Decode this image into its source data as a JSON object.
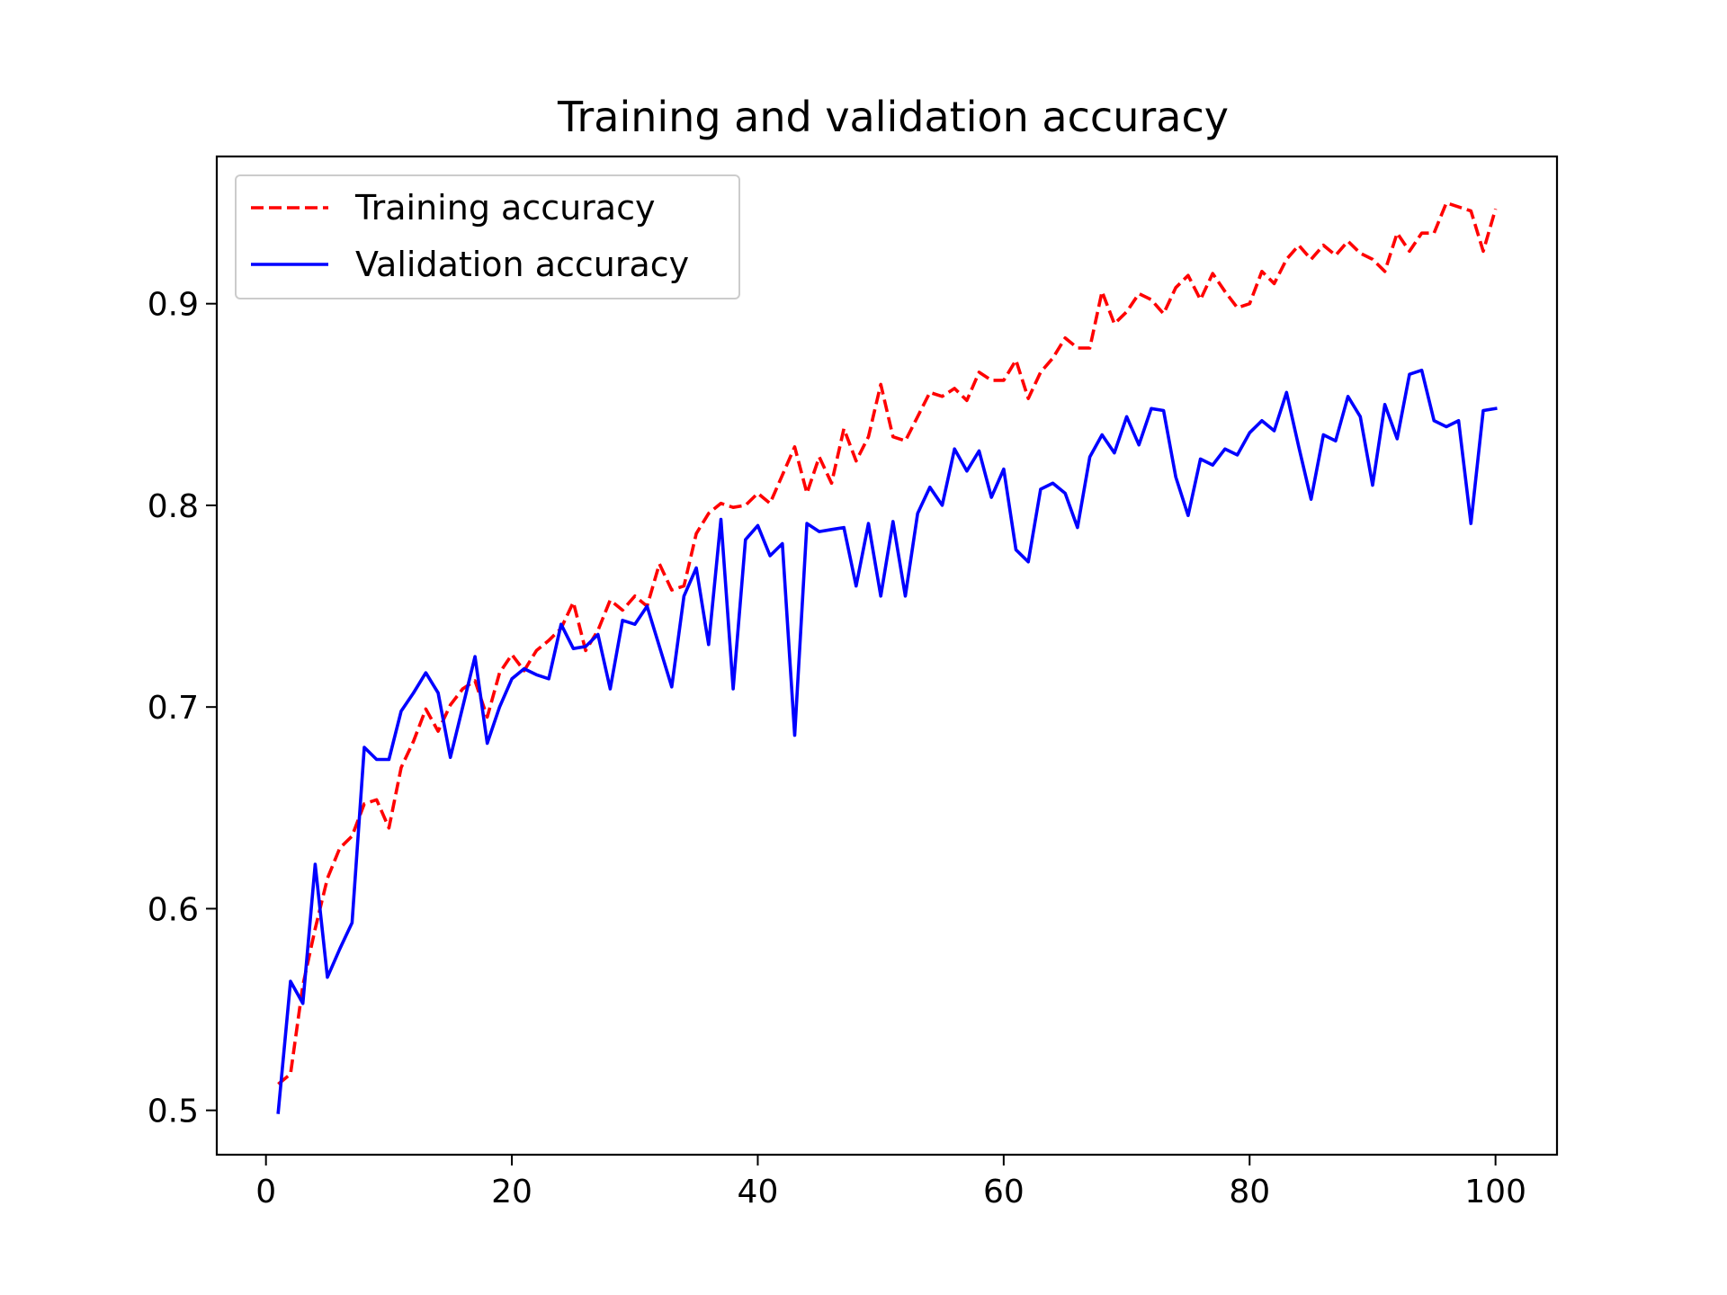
{
  "chart_data": {
    "type": "line",
    "title": "Training and validation accuracy",
    "xlabel": "",
    "ylabel": "",
    "xlim": [
      -4,
      105
    ],
    "ylim": [
      0.478,
      0.973
    ],
    "x_ticks": [
      0,
      20,
      40,
      60,
      80,
      100
    ],
    "x_tick_labels": [
      "0",
      "20",
      "40",
      "60",
      "80",
      "100"
    ],
    "y_ticks": [
      0.5,
      0.6,
      0.7,
      0.8,
      0.9
    ],
    "y_tick_labels": [
      "0.5",
      "0.6",
      "0.7",
      "0.8",
      "0.9"
    ],
    "legend": {
      "position": "top-left"
    },
    "grid": false,
    "series": [
      {
        "name": "Training accuracy",
        "color": "#ff0000",
        "style": "dashed",
        "x_start": 1,
        "values": [
          0.513,
          0.518,
          0.562,
          0.59,
          0.615,
          0.63,
          0.636,
          0.652,
          0.654,
          0.64,
          0.67,
          0.683,
          0.699,
          0.688,
          0.701,
          0.709,
          0.713,
          0.695,
          0.717,
          0.726,
          0.718,
          0.728,
          0.733,
          0.739,
          0.752,
          0.728,
          0.738,
          0.753,
          0.748,
          0.755,
          0.75,
          0.771,
          0.758,
          0.76,
          0.786,
          0.796,
          0.801,
          0.799,
          0.8,
          0.806,
          0.801,
          0.815,
          0.829,
          0.806,
          0.824,
          0.811,
          0.838,
          0.822,
          0.834,
          0.86,
          0.834,
          0.832,
          0.844,
          0.856,
          0.854,
          0.858,
          0.852,
          0.866,
          0.862,
          0.862,
          0.872,
          0.853,
          0.866,
          0.873,
          0.883,
          0.878,
          0.878,
          0.906,
          0.89,
          0.896,
          0.905,
          0.902,
          0.895,
          0.908,
          0.914,
          0.902,
          0.915,
          0.906,
          0.898,
          0.9,
          0.916,
          0.91,
          0.922,
          0.929,
          0.922,
          0.929,
          0.924,
          0.931,
          0.925,
          0.922,
          0.916,
          0.935,
          0.926,
          0.935,
          0.935,
          0.95,
          0.948,
          0.946,
          0.926,
          0.947
        ]
      },
      {
        "name": "Validation accuracy",
        "color": "#0000ff",
        "style": "solid",
        "x_start": 1,
        "values": [
          0.499,
          0.564,
          0.553,
          0.622,
          0.566,
          0.58,
          0.593,
          0.68,
          0.674,
          0.674,
          0.698,
          0.707,
          0.717,
          0.707,
          0.675,
          0.7,
          0.725,
          0.682,
          0.7,
          0.714,
          0.719,
          0.716,
          0.714,
          0.741,
          0.729,
          0.73,
          0.736,
          0.709,
          0.743,
          0.741,
          0.75,
          0.73,
          0.71,
          0.755,
          0.769,
          0.731,
          0.793,
          0.709,
          0.783,
          0.79,
          0.775,
          0.781,
          0.686,
          0.791,
          0.787,
          0.788,
          0.789,
          0.76,
          0.791,
          0.755,
          0.792,
          0.755,
          0.796,
          0.809,
          0.8,
          0.828,
          0.817,
          0.827,
          0.804,
          0.818,
          0.778,
          0.772,
          0.808,
          0.811,
          0.806,
          0.789,
          0.824,
          0.835,
          0.826,
          0.844,
          0.83,
          0.848,
          0.847,
          0.814,
          0.795,
          0.823,
          0.82,
          0.828,
          0.825,
          0.836,
          0.842,
          0.837,
          0.856,
          0.829,
          0.803,
          0.835,
          0.832,
          0.854,
          0.844,
          0.81,
          0.85,
          0.833,
          0.865,
          0.867,
          0.842,
          0.839,
          0.842,
          0.791,
          0.847,
          0.848
        ]
      }
    ]
  }
}
